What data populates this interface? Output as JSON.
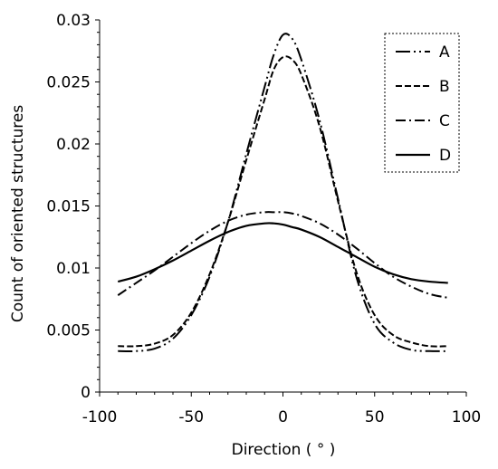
{
  "chart_data": {
    "type": "line",
    "title": "",
    "xlabel": "Direction ( ° )",
    "ylabel": "Count of oriented structures",
    "xlim": [
      -100,
      100
    ],
    "ylim": [
      0,
      0.03
    ],
    "x_ticks": [
      -100,
      -50,
      0,
      50,
      100
    ],
    "x_tick_labels": [
      "-100",
      "-50",
      "0",
      "50",
      "100"
    ],
    "y_ticks": [
      0,
      0.005,
      0.01,
      0.015,
      0.02,
      0.025,
      0.03
    ],
    "y_tick_labels": [
      "0",
      "0.005",
      "0.01",
      "0.015",
      "0.02",
      "0.025",
      "0.03"
    ],
    "grid": false,
    "legend_position": "top-right",
    "x": [
      -90,
      -80,
      -70,
      -60,
      -50,
      -40,
      -30,
      -20,
      -10,
      -5,
      0,
      5,
      10,
      20,
      30,
      40,
      50,
      60,
      70,
      80,
      90
    ],
    "series": [
      {
        "name": "A",
        "dash": "dash-dot-dot",
        "values": [
          0.0033,
          0.0033,
          0.0035,
          0.0043,
          0.0062,
          0.0093,
          0.0137,
          0.0192,
          0.0246,
          0.0272,
          0.0288,
          0.0285,
          0.0268,
          0.0219,
          0.0156,
          0.0093,
          0.0055,
          0.004,
          0.0034,
          0.0033,
          0.0033
        ]
      },
      {
        "name": "B",
        "dash": "dash",
        "values": [
          0.0037,
          0.0037,
          0.0039,
          0.0046,
          0.0064,
          0.0095,
          0.0137,
          0.0187,
          0.0236,
          0.026,
          0.027,
          0.0268,
          0.0256,
          0.0214,
          0.0154,
          0.0097,
          0.0062,
          0.0046,
          0.004,
          0.0037,
          0.0037
        ]
      },
      {
        "name": "C",
        "dash": "dash-dot",
        "values": [
          0.0078,
          0.0088,
          0.0098,
          0.0109,
          0.012,
          0.013,
          0.0138,
          0.0143,
          0.0145,
          0.0145,
          0.0145,
          0.0144,
          0.0142,
          0.0136,
          0.0127,
          0.0116,
          0.0104,
          0.0093,
          0.0085,
          0.0079,
          0.0076
        ]
      },
      {
        "name": "D",
        "dash": "solid",
        "values": [
          0.0089,
          0.0093,
          0.0099,
          0.0106,
          0.0114,
          0.0122,
          0.0129,
          0.0134,
          0.0136,
          0.0136,
          0.0135,
          0.0133,
          0.0131,
          0.0125,
          0.0117,
          0.0109,
          0.0101,
          0.0095,
          0.0091,
          0.0089,
          0.0088
        ]
      }
    ]
  }
}
